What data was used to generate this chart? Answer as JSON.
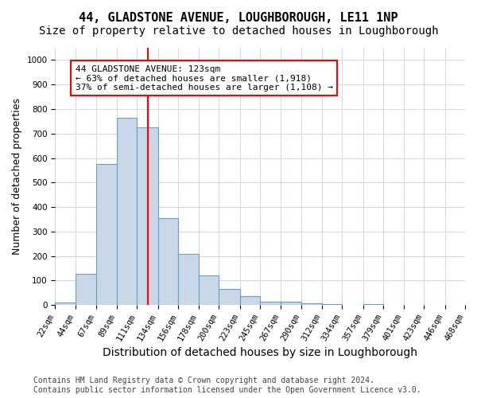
{
  "title": "44, GLADSTONE AVENUE, LOUGHBOROUGH, LE11 1NP",
  "subtitle": "Size of property relative to detached houses in Loughborough",
  "xlabel": "Distribution of detached houses by size in Loughborough",
  "ylabel": "Number of detached properties",
  "bin_edges": [
    22,
    44,
    67,
    89,
    111,
    134,
    156,
    178,
    200,
    223,
    245,
    267,
    290,
    312,
    334,
    357,
    379,
    401,
    423,
    446,
    468
  ],
  "bar_heights": [
    10,
    127,
    575,
    765,
    725,
    355,
    210,
    120,
    65,
    37,
    15,
    15,
    8,
    5,
    0,
    5,
    0,
    0,
    0,
    0
  ],
  "bar_color": "#c8d8e8",
  "bar_edge_color": "#6a9ec5",
  "vline_x": 123,
  "vline_color": "red",
  "annotation_text": "44 GLADSTONE AVENUE: 123sqm\n← 63% of detached houses are smaller (1,918)\n37% of semi-detached houses are larger (1,108) →",
  "annotation_box_color": "white",
  "annotation_box_edge_color": "red",
  "ylim": [
    0,
    1050
  ],
  "yticks": [
    0,
    100,
    200,
    300,
    400,
    500,
    600,
    700,
    800,
    900,
    1000
  ],
  "grid_color": "#d0d8e8",
  "footnote": "Contains HM Land Registry data © Crown copyright and database right 2024.\nContains public sector information licensed under the Open Government Licence v3.0.",
  "title_fontsize": 11,
  "subtitle_fontsize": 10,
  "xlabel_fontsize": 10,
  "ylabel_fontsize": 9,
  "tick_label_fontsize": 7.5,
  "annotation_fontsize": 8,
  "footnote_fontsize": 7
}
